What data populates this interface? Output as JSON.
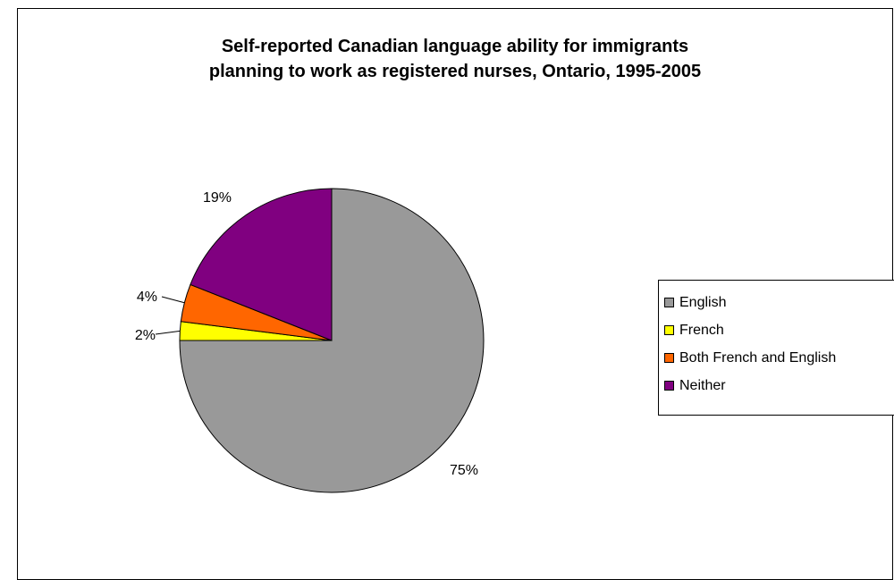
{
  "chart_data": {
    "type": "pie",
    "title_lines": [
      "Self-reported Canadian language ability for immigrants",
      "planning to work as registered nurses, Ontario, 1995-2005"
    ],
    "categories": [
      "English",
      "French",
      "Both French and English",
      "Neither"
    ],
    "values": [
      75,
      2,
      4,
      19
    ],
    "data_labels": [
      "75%",
      "2%",
      "4%",
      "19%"
    ],
    "colors": [
      "#999999",
      "#ffff00",
      "#ff6600",
      "#800080"
    ],
    "legend_position": "right"
  }
}
